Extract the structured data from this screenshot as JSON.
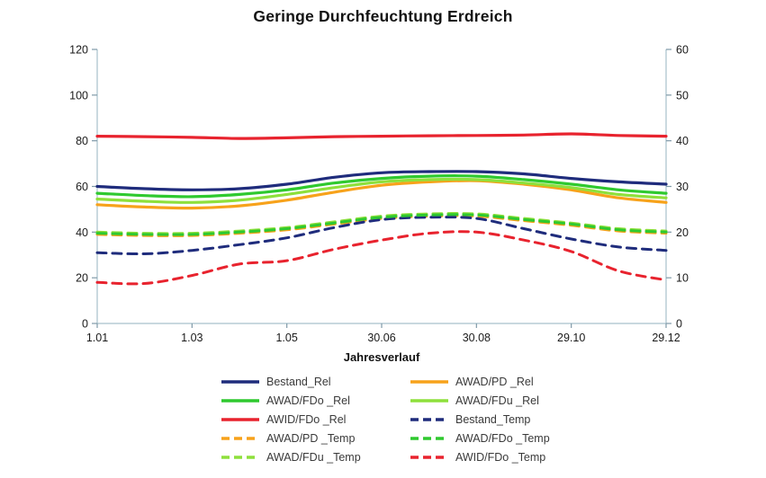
{
  "title": "Geringe Durchfeuchtung Erdreich",
  "axes": {
    "x_label": "Jahresverlauf",
    "left_tick_labels": [
      "0",
      "20",
      "40",
      "60",
      "80",
      "100",
      "120"
    ],
    "right_tick_labels": [
      "0",
      "10",
      "20",
      "30",
      "40",
      "50",
      "60"
    ]
  },
  "colors": {
    "navy": "#1F2C7C",
    "orange": "#F7A21B",
    "green": "#2FC92F",
    "light_green": "#8EE03C",
    "red": "#E8232E",
    "axis_line": "#A8C0CC",
    "tick_mark": "#7F9AA8"
  },
  "chart_data": {
    "type": "line",
    "title": "Geringe Durchfeuchtung Erdreich",
    "xlabel": "Jahresverlauf",
    "x_tick_labels": [
      "1.01",
      "1.03",
      "1.05",
      "30.06",
      "30.08",
      "29.10",
      "29.12"
    ],
    "x_points": [
      "1.01",
      "1.02",
      "1.03",
      "1.04",
      "1.05",
      "1.06",
      "30.06",
      "30.07",
      "30.08",
      "29.09",
      "29.10",
      "29.11",
      "29.12"
    ],
    "y_left": {
      "min": 0,
      "max": 120,
      "ticks": [
        0,
        20,
        40,
        60,
        80,
        100,
        120
      ]
    },
    "y_right": {
      "min": 0,
      "max": 60,
      "ticks": [
        0,
        10,
        20,
        30,
        40,
        50,
        60
      ]
    },
    "grid": false,
    "legend_position": "bottom",
    "series": [
      {
        "name": "AWAD/PD _Temp",
        "color": "#F7A21B",
        "dash": true,
        "axis": "right",
        "values": [
          19.5,
          19.25,
          19.25,
          19.75,
          20.5,
          21.75,
          23,
          23.5,
          23.5,
          22.5,
          21.5,
          20.25,
          19.75
        ]
      },
      {
        "name": "Bestand_Temp",
        "color": "#1F2C7C",
        "dash": true,
        "axis": "right",
        "values": [
          15.5,
          15.25,
          16,
          17.25,
          18.75,
          21,
          22.75,
          23.25,
          23,
          20.75,
          18.5,
          16.75,
          16
        ]
      },
      {
        "name": "AWAD/FDu _Temp",
        "color": "#8EE03C",
        "dash": true,
        "axis": "right",
        "values": [
          20,
          19.75,
          19.75,
          20.25,
          21,
          22.25,
          23.5,
          24,
          24,
          23,
          22,
          20.75,
          20.25
        ]
      },
      {
        "name": "AWAD/FDo _Temp",
        "color": "#2FC92F",
        "dash": true,
        "axis": "right",
        "values": [
          19.75,
          19.5,
          19.5,
          20,
          20.75,
          22,
          23.25,
          23.75,
          23.75,
          22.75,
          21.75,
          20.5,
          20
        ]
      },
      {
        "name": "AWID/FDo _Temp",
        "color": "#E8232E",
        "dash": true,
        "axis": "right",
        "values": [
          9,
          8.75,
          10.5,
          13,
          13.75,
          16.25,
          18.25,
          19.75,
          20,
          18.25,
          15.75,
          11.5,
          9.5
        ]
      },
      {
        "name": "AWAD/PD _Rel",
        "color": "#F7A21B",
        "dash": false,
        "axis": "left",
        "values": [
          52,
          51,
          50.5,
          51.5,
          54,
          57.5,
          60.5,
          62,
          62.5,
          61,
          58.5,
          55,
          53
        ]
      },
      {
        "name": "AWAD/FDu _Rel",
        "color": "#8EE03C",
        "dash": false,
        "axis": "left",
        "values": [
          54.5,
          53.5,
          53,
          54,
          56.5,
          59.5,
          62,
          63,
          63,
          61.5,
          59.5,
          56.5,
          55
        ]
      },
      {
        "name": "AWAD/FDo _Rel",
        "color": "#2FC92F",
        "dash": false,
        "axis": "left",
        "values": [
          57,
          56,
          55.5,
          56.5,
          58.5,
          61.5,
          63.5,
          64.5,
          64.5,
          63,
          61,
          58.5,
          57
        ]
      },
      {
        "name": "Bestand_Rel",
        "color": "#1F2C7C",
        "dash": false,
        "axis": "left",
        "values": [
          60,
          59,
          58.5,
          59,
          61,
          64,
          66,
          66.5,
          66.5,
          65.5,
          63.5,
          62,
          61
        ]
      },
      {
        "name": "AWID/FDo _Rel",
        "color": "#E8232E",
        "dash": false,
        "axis": "left",
        "values": [
          82,
          81.8,
          81.5,
          81,
          81.3,
          81.8,
          82,
          82.2,
          82.3,
          82.5,
          83,
          82.3,
          82
        ]
      }
    ],
    "legend_columns": [
      [
        "Bestand_Rel",
        "AWAD/FDo _Rel",
        "AWID/FDo _Rel",
        "AWAD/PD _Temp",
        "AWAD/FDu _Temp"
      ],
      [
        "AWAD/PD _Rel",
        "AWAD/FDu _Rel",
        "Bestand_Temp",
        "AWAD/FDo _Temp",
        "AWID/FDo _Temp"
      ]
    ]
  }
}
